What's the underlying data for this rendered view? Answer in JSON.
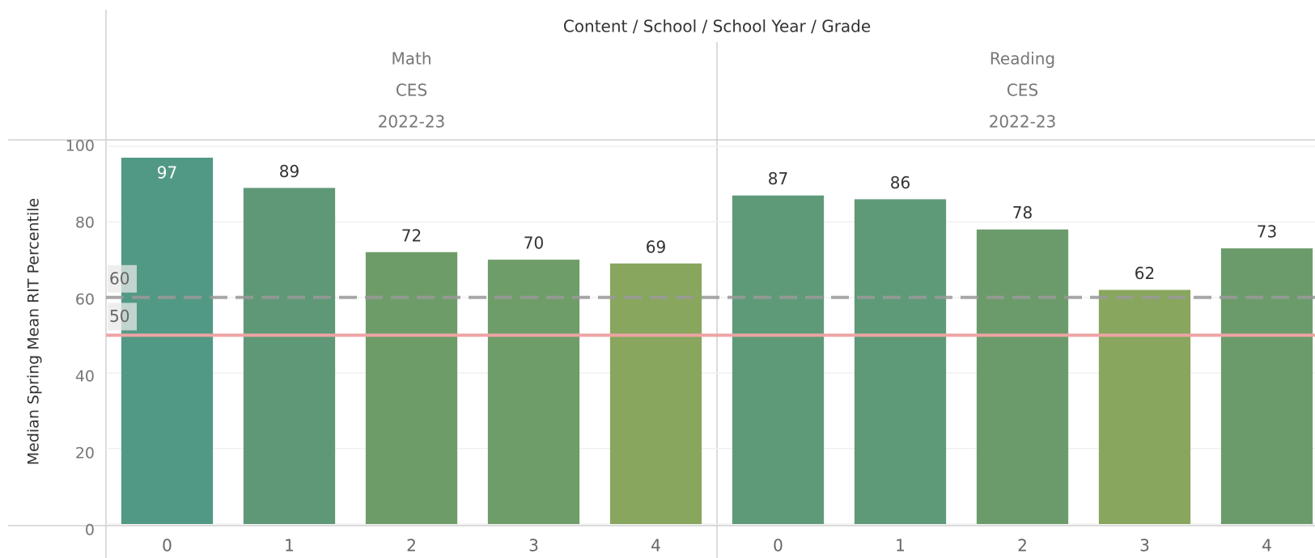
{
  "chart_data": {
    "type": "bar",
    "title": "Content / School / School Year / Grade",
    "y_label": "Median Spring Mean RIT Percentile",
    "ylim": [
      0,
      100
    ],
    "yticks": [
      0,
      20,
      40,
      60,
      80,
      100
    ],
    "grid": true,
    "reference_lines": [
      {
        "value": 60,
        "color": "#9a9a9a",
        "style": "dashed"
      },
      {
        "value": 50,
        "color": "#eea4a4",
        "style": "solid"
      }
    ],
    "panels": [
      {
        "headers": [
          "Math",
          "CES",
          "2022-23"
        ],
        "categories": [
          "0",
          "1",
          "2",
          "3",
          "4"
        ],
        "values": [
          97,
          89,
          72,
          70,
          69
        ],
        "colors": [
          "#529985",
          "#5f9877",
          "#6e9c69",
          "#6f9d69",
          "#88a65e"
        ]
      },
      {
        "headers": [
          "Reading",
          "CES",
          "2022-23"
        ],
        "categories": [
          "0",
          "1",
          "2",
          "3",
          "4"
        ],
        "values": [
          87,
          86,
          78,
          62,
          73
        ],
        "colors": [
          "#5f9a78",
          "#5e9a78",
          "#6c9b6b",
          "#88a65e",
          "#6c9b6b"
        ]
      }
    ]
  }
}
